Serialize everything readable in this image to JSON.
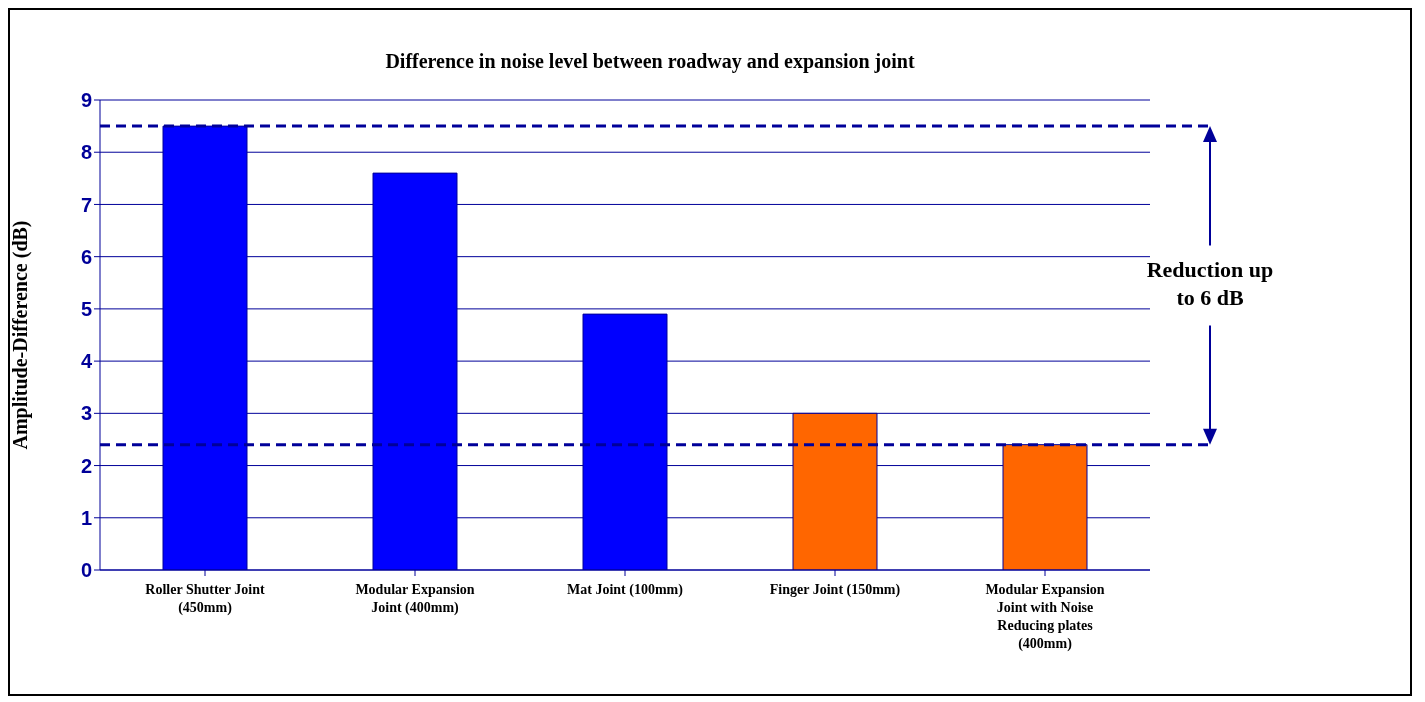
{
  "chart_data": {
    "type": "bar",
    "title": "Difference in noise level between roadway and expansion joint",
    "ylabel": "Amplitude-Difference (dB)",
    "categories": [
      "Roller Shutter Joint (450mm)",
      "Modular Expansion Joint (400mm)",
      "Mat Joint (100mm)",
      "Finger Joint (150mm)",
      "Modular Expansion Joint with Noise Reducing plates (400mm)"
    ],
    "values": [
      8.5,
      7.6,
      4.9,
      3.0,
      2.4
    ],
    "colors": [
      "#0000ff",
      "#0000ff",
      "#0000ff",
      "#ff6600",
      "#ff6600"
    ],
    "ylim": [
      0,
      9
    ],
    "yticks": [
      0,
      1,
      2,
      3,
      4,
      5,
      6,
      7,
      8,
      9
    ],
    "grid": "y",
    "ref_lines": [
      {
        "axis": "y",
        "value": 8.5,
        "color": "#000099",
        "line_style": "dashed"
      },
      {
        "axis": "y",
        "value": 2.4,
        "color": "#000099",
        "line_style": "dashed"
      }
    ],
    "annotations": [
      "Reduction up to 6 dB"
    ]
  }
}
